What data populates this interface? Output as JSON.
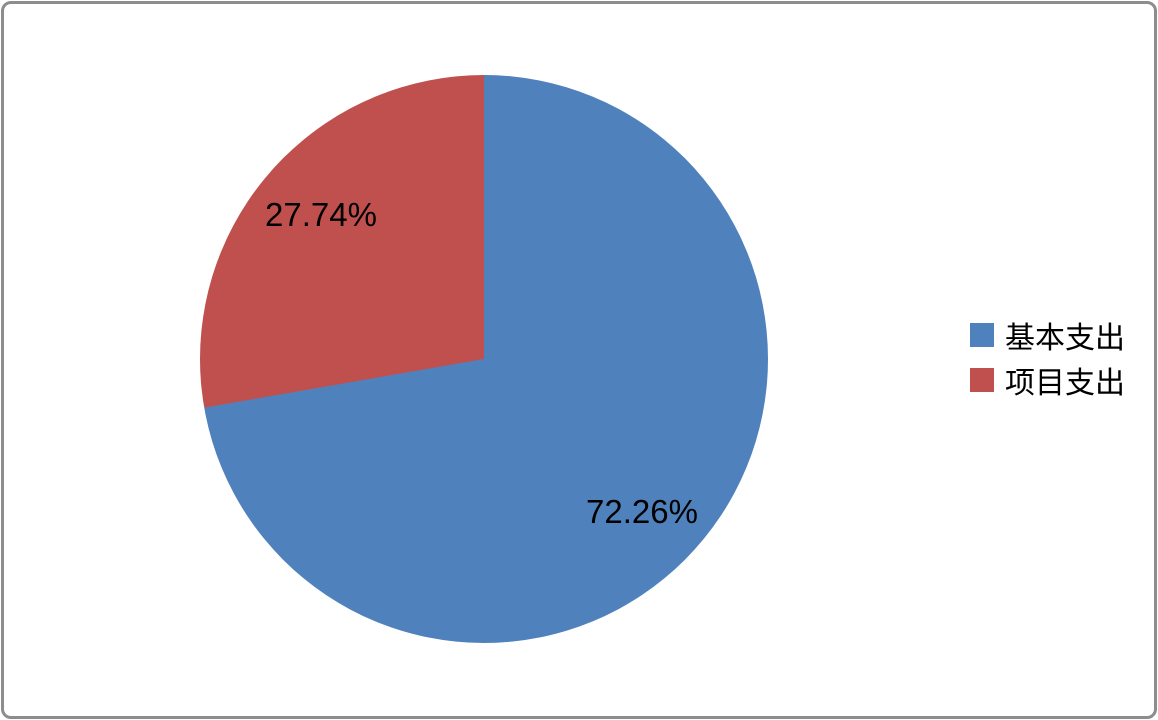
{
  "chart_data": {
    "type": "pie",
    "labels": [
      "基本支出",
      "项目支出"
    ],
    "values": [
      72.26,
      27.74
    ],
    "value_labels": [
      "72.26%",
      "27.74%"
    ],
    "colors": [
      "#4F81BD",
      "#C0504D"
    ],
    "start_angle_deg": 0,
    "direction": "clockwise",
    "legend_position": "right",
    "title": "",
    "frame_border_color": "#8D8D8D",
    "background_color": "#FFFFFF"
  }
}
